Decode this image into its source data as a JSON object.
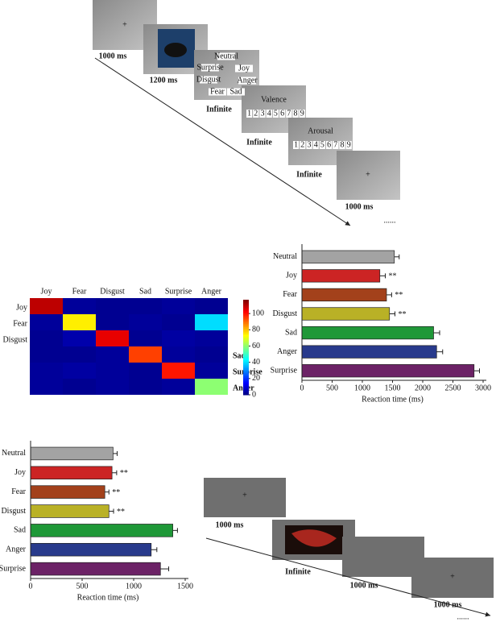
{
  "task_a": {
    "fixation": "+",
    "durations": [
      "1000 ms",
      "1200 ms",
      "Infinite",
      "Infinite",
      "Infinite",
      "1000 ms"
    ],
    "emotion_options": [
      "Neutral",
      "Surprise",
      "Joy",
      "Disgust",
      "Anger",
      "Fear",
      "Sad"
    ],
    "valence": "Valence",
    "arousal": "Arousal",
    "scale": [
      1,
      2,
      3,
      4,
      5,
      6,
      7,
      8,
      9
    ],
    "continuation": "......"
  },
  "task_b": {
    "fixation": "+",
    "durations": [
      "1000 ms",
      "Infinite",
      "1000 ms",
      "1000 ms"
    ],
    "continuation": "......"
  },
  "chart_data": [
    {
      "type": "heatmap",
      "x_categories": [
        "Joy",
        "Fear",
        "Disgust",
        "Sad",
        "Surprise",
        "Anger"
      ],
      "y_categories": [
        "Joy",
        "Fear",
        "Disgust",
        "Sad",
        "Surprise",
        "Anger"
      ],
      "values": [
        [
          110,
          3,
          2,
          2,
          3,
          2
        ],
        [
          3,
          75,
          2,
          3,
          2,
          40
        ],
        [
          2,
          5,
          105,
          2,
          4,
          3
        ],
        [
          2,
          2,
          3,
          95,
          3,
          2
        ],
        [
          3,
          4,
          3,
          2,
          100,
          3
        ],
        [
          3,
          2,
          3,
          2,
          3,
          60
        ]
      ],
      "zlim": [
        0,
        117
      ],
      "zticks": [
        0,
        20,
        40,
        60,
        80,
        100
      ],
      "colormap": "jet"
    },
    {
      "type": "barh",
      "categories": [
        "Neutral",
        "Joy",
        "Fear",
        "Disgust",
        "Sad",
        "Anger",
        "Surprise"
      ],
      "values": [
        1530,
        1290,
        1400,
        1450,
        2180,
        2230,
        2850
      ],
      "errors": [
        80,
        90,
        85,
        90,
        100,
        100,
        90
      ],
      "colors": [
        "#a3a3a3",
        "#cc2424",
        "#a3411b",
        "#b9b126",
        "#1f9838",
        "#283a8c",
        "#6c2266"
      ],
      "significance": [
        null,
        "**",
        "**",
        "**",
        null,
        null,
        null
      ],
      "xlim": [
        0,
        3000
      ],
      "xticks": [
        0,
        500,
        1000,
        1500,
        2000,
        2500,
        3000
      ],
      "xlabel": "Reaction time (ms)"
    },
    {
      "type": "barh",
      "categories": [
        "Neutral",
        "Joy",
        "Fear",
        "Disgust",
        "Sad",
        "Anger",
        "Surprise"
      ],
      "values": [
        800,
        790,
        720,
        760,
        1380,
        1170,
        1260
      ],
      "errors": [
        40,
        45,
        40,
        45,
        45,
        55,
        80
      ],
      "colors": [
        "#a3a3a3",
        "#cc2424",
        "#a3411b",
        "#b9b126",
        "#1f9838",
        "#283a8c",
        "#6c2266"
      ],
      "significance": [
        null,
        "**",
        "**",
        "**",
        null,
        null,
        null
      ],
      "xlim": [
        0,
        1500
      ],
      "xticks": [
        0,
        500,
        1000,
        1500
      ],
      "xlabel": "Reaction time (ms)"
    }
  ]
}
